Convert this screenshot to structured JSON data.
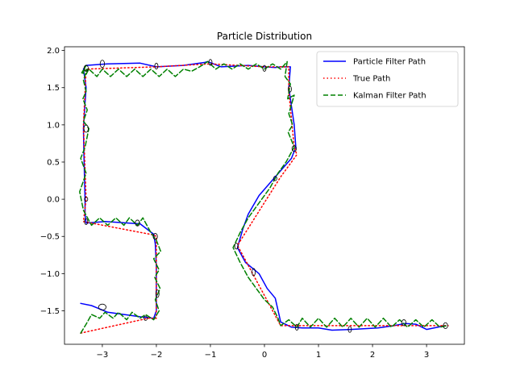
{
  "chart_data": {
    "type": "line",
    "title": "Particle Distribution",
    "xlabel": "",
    "ylabel": "",
    "xlim": [
      -3.7,
      3.7
    ],
    "ylim": [
      -1.95,
      2.05
    ],
    "xticks": [
      -3,
      -2,
      -1,
      0,
      1,
      2,
      3
    ],
    "yticks": [
      -1.5,
      -1.0,
      -0.5,
      0.0,
      0.5,
      1.0,
      1.5,
      2.0
    ],
    "xtick_labels": [
      "−3",
      "−2",
      "−1",
      "0",
      "1",
      "2",
      "3"
    ],
    "ytick_labels": [
      "−1.5",
      "−1.0",
      "−0.5",
      "0.0",
      "0.5",
      "1.0",
      "1.5",
      "2.0"
    ],
    "grid": false,
    "legend_position": "top-right",
    "series": [
      {
        "name": "Particle Filter Path",
        "style": "solid",
        "color": "#0000ff",
        "x": [
          -3.4,
          -3.2,
          -2.9,
          -2.3,
          -2.05,
          -2.0,
          -2.0,
          -2.0,
          -2.02,
          -2.05,
          -2.3,
          -2.95,
          -3.3,
          -3.32,
          -3.32,
          -3.33,
          -3.34,
          -3.35,
          -3.32,
          -3.3,
          -3.35,
          -3.3,
          -2.9,
          -2.3,
          -2.0,
          -1.5,
          -1.1,
          -1.05,
          -0.8,
          -0.3,
          0.0,
          0.2,
          0.3,
          0.48,
          0.45,
          0.5,
          0.55,
          0.58,
          0.5,
          0.2,
          -0.1,
          -0.3,
          -0.4,
          -0.5,
          -0.35,
          -0.1,
          0.05,
          0.2,
          0.3,
          0.5,
          0.7,
          1.0,
          1.25,
          1.6,
          2.1,
          2.4,
          2.6,
          2.8,
          3.0,
          3.35
        ],
        "y": [
          -1.4,
          -1.43,
          -1.52,
          -1.58,
          -1.6,
          -1.5,
          -1.25,
          -0.9,
          -0.6,
          -0.47,
          -0.33,
          -0.3,
          -0.32,
          -0.2,
          0.0,
          0.3,
          0.6,
          0.95,
          1.3,
          1.5,
          1.75,
          1.8,
          1.82,
          1.83,
          1.78,
          1.8,
          1.84,
          1.85,
          1.78,
          1.8,
          1.78,
          1.77,
          1.78,
          1.78,
          1.5,
          1.25,
          1.0,
          0.7,
          0.55,
          0.3,
          0.05,
          -0.2,
          -0.4,
          -0.65,
          -0.85,
          -1.0,
          -1.2,
          -1.33,
          -1.65,
          -1.72,
          -1.73,
          -1.73,
          -1.76,
          -1.75,
          -1.73,
          -1.7,
          -1.67,
          -1.68,
          -1.75,
          -1.7
        ]
      },
      {
        "name": "True Path",
        "style": "dotted",
        "color": "#ff0000",
        "x": [
          -3.4,
          -2.15,
          -2.0,
          -2.0,
          -2.05,
          -3.35,
          -3.3,
          -3.35,
          -3.3,
          -2.0,
          -1.0,
          0.0,
          0.45,
          0.45,
          0.55,
          0.6,
          0.3,
          -0.5,
          0.3,
          3.4
        ],
        "y": [
          -1.8,
          -1.6,
          -1.6,
          -0.5,
          -0.48,
          -0.3,
          0.0,
          1.0,
          1.75,
          1.78,
          1.82,
          1.78,
          1.78,
          1.45,
          0.7,
          0.6,
          0.3,
          -0.62,
          -1.7,
          -1.7
        ]
      },
      {
        "name": "Kalman Filter Path",
        "style": "dashed",
        "color": "#008000",
        "x": [
          -3.4,
          -3.3,
          -3.2,
          -3.05,
          -2.95,
          -2.8,
          -2.7,
          -2.55,
          -2.45,
          -2.3,
          -2.2,
          -2.05,
          -1.95,
          -2.02,
          -1.93,
          -2.03,
          -1.95,
          -2.05,
          -1.92,
          -2.0,
          -2.1,
          -2.25,
          -2.35,
          -2.5,
          -2.6,
          -2.75,
          -2.9,
          -3.05,
          -3.2,
          -3.35,
          -3.42,
          -3.3,
          -3.4,
          -3.32,
          -3.25,
          -3.35,
          -3.28,
          -3.36,
          -3.3,
          -3.35,
          -3.28,
          -3.36,
          -3.3,
          -3.38,
          -3.3,
          -3.25,
          -3.1,
          -3.0,
          -2.85,
          -2.7,
          -2.55,
          -2.4,
          -2.25,
          -2.1,
          -1.95,
          -1.8,
          -1.65,
          -1.5,
          -1.35,
          -1.2,
          -1.05,
          -0.9,
          -0.75,
          -0.6,
          -0.45,
          -0.3,
          -0.15,
          0.0,
          0.15,
          0.3,
          0.42,
          0.38,
          0.48,
          0.43,
          0.55,
          0.45,
          0.52,
          0.44,
          0.55,
          0.4,
          0.25,
          0.1,
          -0.1,
          -0.3,
          -0.45,
          -0.58,
          -0.45,
          -0.3,
          -0.15,
          0.0,
          0.15,
          0.25,
          0.3,
          0.45,
          0.6,
          0.7,
          0.85,
          1.0,
          1.15,
          1.3,
          1.45,
          1.6,
          1.75,
          1.9,
          2.05,
          2.2,
          2.35,
          2.5,
          2.65,
          2.8,
          2.95,
          3.1,
          3.25,
          3.38
        ],
        "y": [
          -1.8,
          -1.68,
          -1.55,
          -1.6,
          -1.52,
          -1.6,
          -1.52,
          -1.62,
          -1.52,
          -1.6,
          -1.55,
          -1.62,
          -1.5,
          -1.35,
          -1.2,
          -1.05,
          -0.95,
          -0.8,
          -0.7,
          -0.55,
          -0.45,
          -0.25,
          -0.35,
          -0.25,
          -0.35,
          -0.25,
          -0.35,
          -0.25,
          -0.35,
          -0.15,
          0.1,
          0.35,
          0.55,
          0.7,
          0.95,
          1.05,
          1.2,
          1.35,
          1.45,
          1.6,
          1.75,
          1.7,
          1.8,
          1.7,
          1.68,
          1.75,
          1.65,
          1.75,
          1.65,
          1.75,
          1.65,
          1.75,
          1.65,
          1.75,
          1.65,
          1.75,
          1.65,
          1.75,
          1.72,
          1.78,
          1.85,
          1.75,
          1.82,
          1.75,
          1.82,
          1.75,
          1.82,
          1.75,
          1.82,
          1.75,
          1.85,
          1.65,
          1.55,
          1.35,
          1.4,
          1.15,
          1.0,
          0.9,
          0.7,
          0.5,
          0.35,
          0.15,
          -0.05,
          -0.25,
          -0.45,
          -0.65,
          -0.85,
          -1.05,
          -1.2,
          -1.35,
          -1.45,
          -1.6,
          -1.7,
          -1.62,
          -1.72,
          -1.6,
          -1.72,
          -1.6,
          -1.72,
          -1.6,
          -1.72,
          -1.6,
          -1.72,
          -1.6,
          -1.72,
          -1.6,
          -1.72,
          -1.62,
          -1.72,
          -1.62,
          -1.72,
          -1.62,
          -1.72,
          -1.7
        ]
      }
    ],
    "particles": [
      {
        "x": -3.3,
        "y": 1.76,
        "rx": 0.04,
        "ry": 0.04
      },
      {
        "x": -3.0,
        "y": 1.82,
        "rx": 0.04,
        "ry": 0.05
      },
      {
        "x": -2.0,
        "y": 1.79,
        "rx": 0.03,
        "ry": 0.04
      },
      {
        "x": -1.0,
        "y": 1.84,
        "rx": 0.03,
        "ry": 0.04
      },
      {
        "x": 0.0,
        "y": 1.76,
        "rx": 0.03,
        "ry": 0.04
      },
      {
        "x": 0.47,
        "y": 1.48,
        "rx": 0.03,
        "ry": 0.04
      },
      {
        "x": 0.55,
        "y": 0.68,
        "rx": 0.04,
        "ry": 0.04
      },
      {
        "x": 0.2,
        "y": 0.28,
        "rx": 0.03,
        "ry": 0.03
      },
      {
        "x": -0.2,
        "y": -0.98,
        "rx": 0.03,
        "ry": 0.05
      },
      {
        "x": -0.52,
        "y": -0.63,
        "rx": 0.03,
        "ry": 0.04
      },
      {
        "x": 0.6,
        "y": -1.72,
        "rx": 0.03,
        "ry": 0.04
      },
      {
        "x": 1.58,
        "y": -1.75,
        "rx": 0.03,
        "ry": 0.04
      },
      {
        "x": 2.58,
        "y": -1.66,
        "rx": 0.04,
        "ry": 0.04
      },
      {
        "x": 3.35,
        "y": -1.7,
        "rx": 0.04,
        "ry": 0.04
      },
      {
        "x": -3.3,
        "y": 0.95,
        "rx": 0.04,
        "ry": 0.05
      },
      {
        "x": -3.3,
        "y": 0.0,
        "rx": 0.03,
        "ry": 0.03
      },
      {
        "x": -3.3,
        "y": -0.3,
        "rx": 0.03,
        "ry": 0.04
      },
      {
        "x": -2.35,
        "y": -0.32,
        "rx": 0.04,
        "ry": 0.04
      },
      {
        "x": -2.02,
        "y": -0.5,
        "rx": 0.04,
        "ry": 0.04
      },
      {
        "x": -1.98,
        "y": -1.27,
        "rx": 0.03,
        "ry": 0.05
      },
      {
        "x": -2.2,
        "y": -1.6,
        "rx": 0.03,
        "ry": 0.03
      },
      {
        "x": -3.0,
        "y": -1.45,
        "rx": 0.07,
        "ry": 0.04
      }
    ]
  }
}
